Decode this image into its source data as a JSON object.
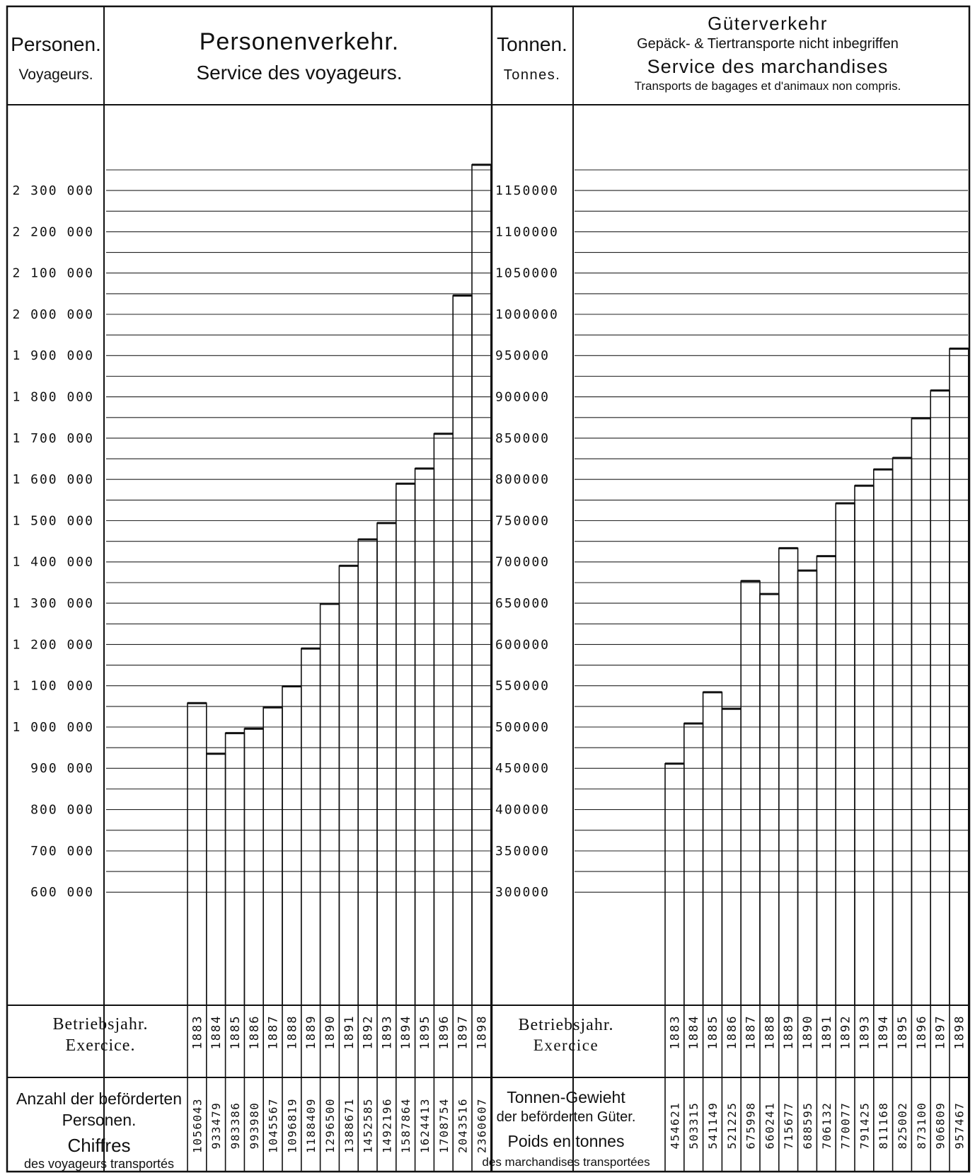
{
  "passenger": {
    "axis_title": "Personen.",
    "axis_title_fr": "Voyageurs.",
    "title": "Personenverkehr.",
    "subtitle": "Service des voyageurs.",
    "year_label": "Betriebsjahr.",
    "year_label_fr": "Exercice.",
    "count_label_1": "Anzahl der beförderten",
    "count_label_2": "Personen.",
    "count_label_fr_1": "Chiffres",
    "count_label_fr_2": "des voyageurs transportés",
    "tick_labels": [
      "600 000",
      "700 000",
      "800 000",
      "900 000",
      "1 000 000",
      "1 100 000",
      "1 200 000",
      "1 300 000",
      "1 400 000",
      "1 500 000",
      "1 600 000",
      "1 700 000",
      "1 800 000",
      "1 900 000",
      "2 000 000",
      "2 100 000",
      "2 200 000",
      "2 300 000"
    ],
    "value_labels": [
      "1056043",
      "933479",
      "983386",
      "993980",
      "1045567",
      "1096819",
      "1188409",
      "1296500",
      "1388671",
      "1452585",
      "1492196",
      "1587864",
      "1624413",
      "1708754",
      "2043516",
      "2360607"
    ]
  },
  "freight": {
    "axis_title": "Tonnen.",
    "axis_title_fr": "Tonnes.",
    "title": "Güterverkehr",
    "note": "Gepäck- & Tiertransporte nicht inbegriffen",
    "subtitle": "Service des marchandises",
    "note_fr": "Transports de bagages et d'animaux non compris.",
    "year_label": "Betriebsjahr.",
    "year_label_fr": "Exercice",
    "weight_label_1": "Tonnen-Gewieht",
    "weight_label_2": "der beförderten Güter.",
    "weight_label_fr_1": "Poids en tonnes",
    "weight_label_fr_2": "des marchandises transportées",
    "tick_labels": [
      "300000",
      "350000",
      "400000",
      "450000",
      "500000",
      "550000",
      "600000",
      "650000",
      "700000",
      "750000",
      "800000",
      "850000",
      "900000",
      "950000",
      "1000000",
      "1050000",
      "1100000",
      "1150000"
    ],
    "value_labels": [
      "454621",
      "503315",
      "541149",
      "521225",
      "675998",
      "660241",
      "715677",
      "688595",
      "706132",
      "770077",
      "791425",
      "811168",
      "825002",
      "873100",
      "906809",
      "957467"
    ]
  },
  "chart_data": [
    {
      "type": "bar",
      "title": "Personenverkehr.",
      "subtitle": "Service des voyageurs.",
      "ylabel": "Personen. / Voyageurs.",
      "xlabel": "Betriebsjahr. / Exercice.",
      "categories": [
        "1883",
        "1884",
        "1885",
        "1886",
        "1887",
        "1888",
        "1889",
        "1890",
        "1891",
        "1892",
        "1893",
        "1894",
        "1895",
        "1896",
        "1897",
        "1898"
      ],
      "values": [
        1056043,
        933479,
        983386,
        993980,
        1045567,
        1096819,
        1188409,
        1296500,
        1388671,
        1452585,
        1492196,
        1587864,
        1624413,
        1708754,
        2043516,
        2360607
      ],
      "yticks": [
        600000,
        700000,
        800000,
        900000,
        1000000,
        1100000,
        1200000,
        1300000,
        1400000,
        1500000,
        1600000,
        1700000,
        1800000,
        1900000,
        2000000,
        2100000,
        2200000,
        2300000
      ],
      "ylim": [
        500000,
        2350000
      ],
      "grid": true
    },
    {
      "type": "bar",
      "title": "Güterverkehr",
      "subtitle": "Service des marchandises",
      "ylabel": "Tonnen. / Tonnes.",
      "xlabel": "Betriebsjahr. / Exercice",
      "categories": [
        "1883",
        "1884",
        "1885",
        "1886",
        "1887",
        "1888",
        "1889",
        "1890",
        "1891",
        "1892",
        "1893",
        "1894",
        "1895",
        "1896",
        "1897",
        "1898"
      ],
      "values": [
        454621,
        503315,
        541149,
        521225,
        675998,
        660241,
        715677,
        688595,
        706132,
        770077,
        791425,
        811168,
        825002,
        873100,
        906809,
        957467
      ],
      "yticks": [
        300000,
        350000,
        400000,
        450000,
        500000,
        550000,
        600000,
        650000,
        700000,
        750000,
        800000,
        850000,
        900000,
        950000,
        1000000,
        1050000,
        1100000,
        1150000
      ],
      "ylim": [
        250000,
        1175000
      ],
      "grid": true
    }
  ]
}
